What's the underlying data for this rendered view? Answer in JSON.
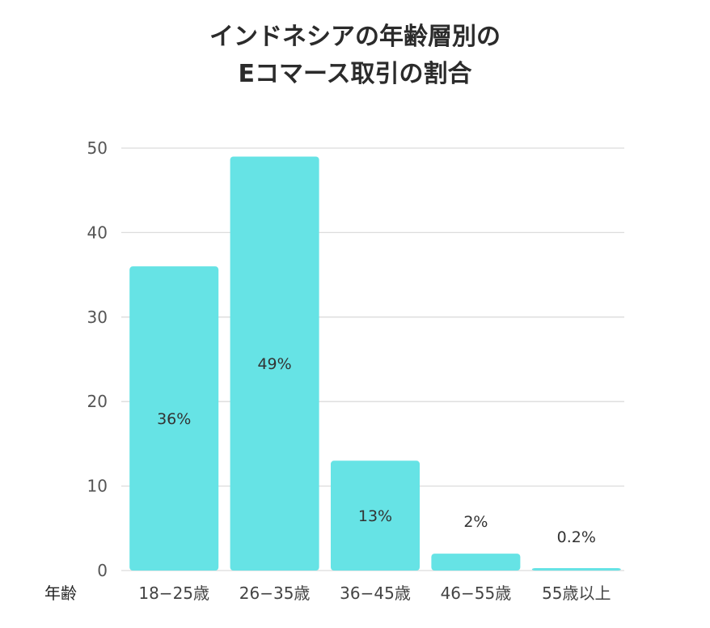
{
  "title_lines": [
    "インドネシアの年齢層別の",
    "Eコマース取引の割合"
  ],
  "chart_data": {
    "type": "bar",
    "title": "インドネシアの年齢層別のEコマース取引の割合",
    "xlabel": "年齢",
    "ylabel": "",
    "categories": [
      "18−25歳",
      "26−35歳",
      "36−45歳",
      "46−55歳",
      "55歳以上"
    ],
    "values": [
      36,
      49,
      13,
      2,
      0.2
    ],
    "data_labels": [
      "36%",
      "49%",
      "13%",
      "2%",
      "0.2%"
    ],
    "ylim": [
      0,
      50
    ],
    "yticks": [
      "0",
      "10",
      "20",
      "30",
      "40",
      "50"
    ],
    "grid": true,
    "bar_color": "#66e3e5",
    "grid_color": "#dcdcdc"
  }
}
